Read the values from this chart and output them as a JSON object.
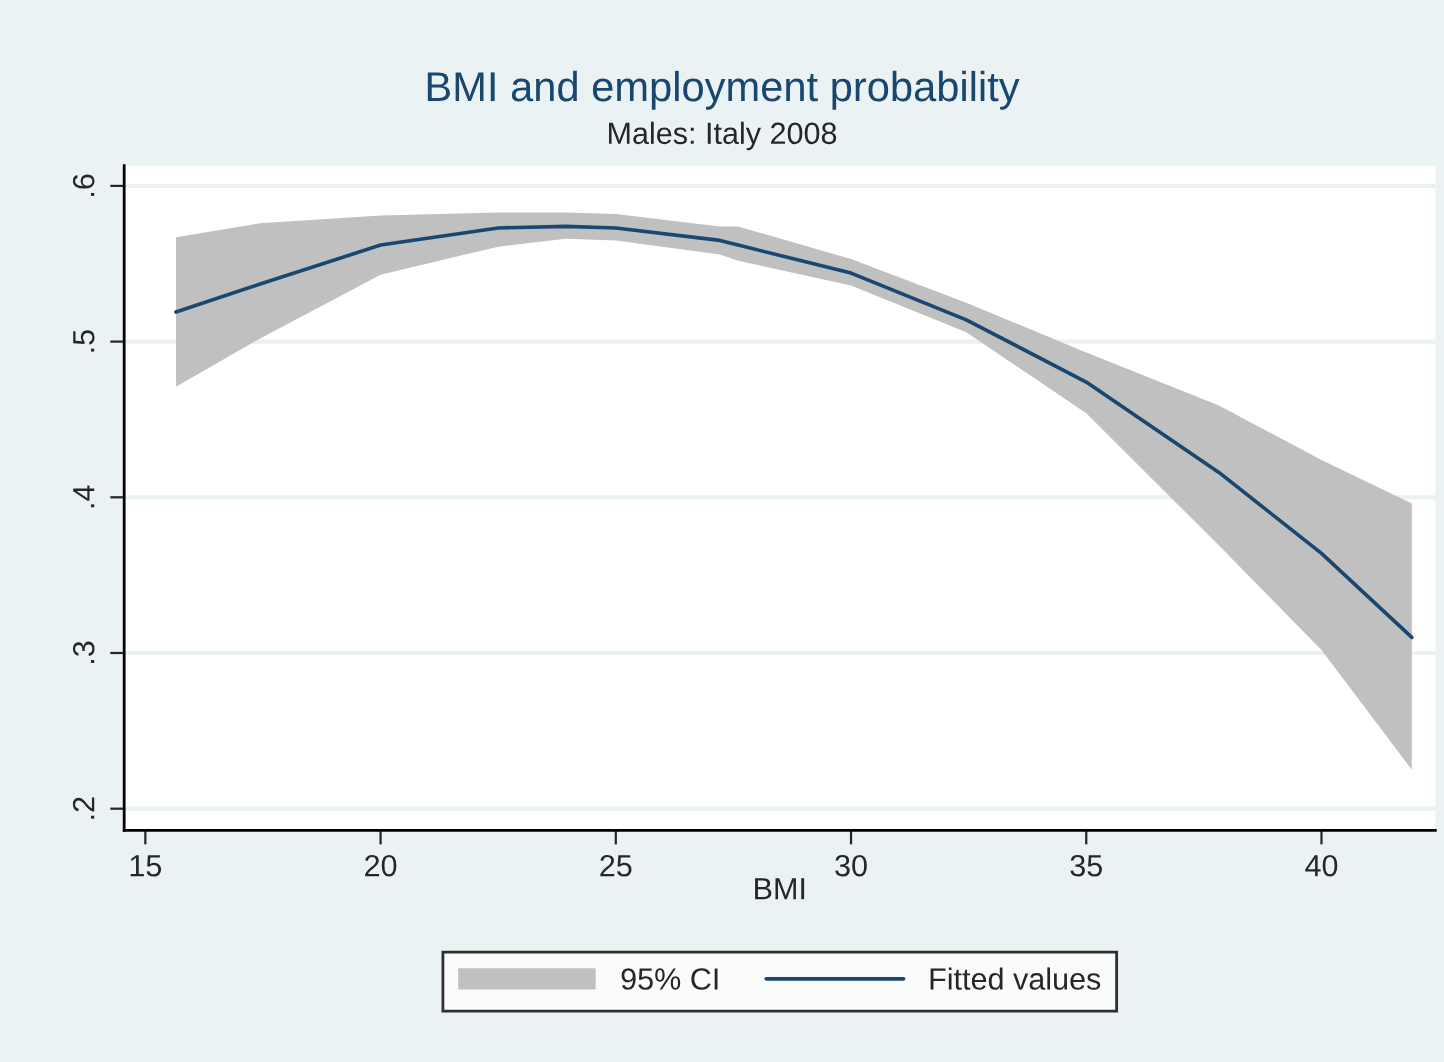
{
  "chart_data": {
    "type": "line",
    "title": "BMI and employment probability",
    "subtitle": "Males: Italy 2008",
    "xlabel": "BMI",
    "x": [
      15.65,
      17.44,
      20,
      22.5,
      23.94,
      25,
      27.21,
      27.6,
      30,
      32.45,
      35,
      37.82,
      40,
      41.92
    ],
    "series": [
      {
        "name": "Fitted values",
        "color": "#1a476f",
        "values": [
          0.519,
          0.537,
          0.562,
          0.573,
          0.574,
          0.573,
          0.565,
          0.562,
          0.544,
          0.514,
          0.474,
          0.416,
          0.364,
          0.31
        ],
        "lower": [
          0.471,
          0.502,
          0.543,
          0.561,
          0.566,
          0.565,
          0.556,
          0.552,
          0.536,
          0.506,
          0.454,
          0.369,
          0.302,
          0.225
        ],
        "upper": [
          0.567,
          0.576,
          0.581,
          0.583,
          0.583,
          0.582,
          0.574,
          0.574,
          0.553,
          0.525,
          0.493,
          0.459,
          0.424,
          0.396
        ]
      }
    ],
    "annotations": [
      "95% CI"
    ],
    "xlim": [
      14.55,
      42.42
    ],
    "ylim": [
      0.186,
      0.613
    ],
    "xticks": [
      15,
      20,
      25,
      30,
      35,
      40
    ],
    "yticks": [
      {
        "value": 0.2,
        "label": ".2"
      },
      {
        "value": 0.3,
        "label": ".3"
      },
      {
        "value": 0.4,
        "label": ".4"
      },
      {
        "value": 0.5,
        "label": ".5"
      },
      {
        "value": 0.6,
        "label": ".6"
      }
    ],
    "grid": "y",
    "legend": "bottom",
    "line_style": "solid",
    "marker": "none"
  }
}
